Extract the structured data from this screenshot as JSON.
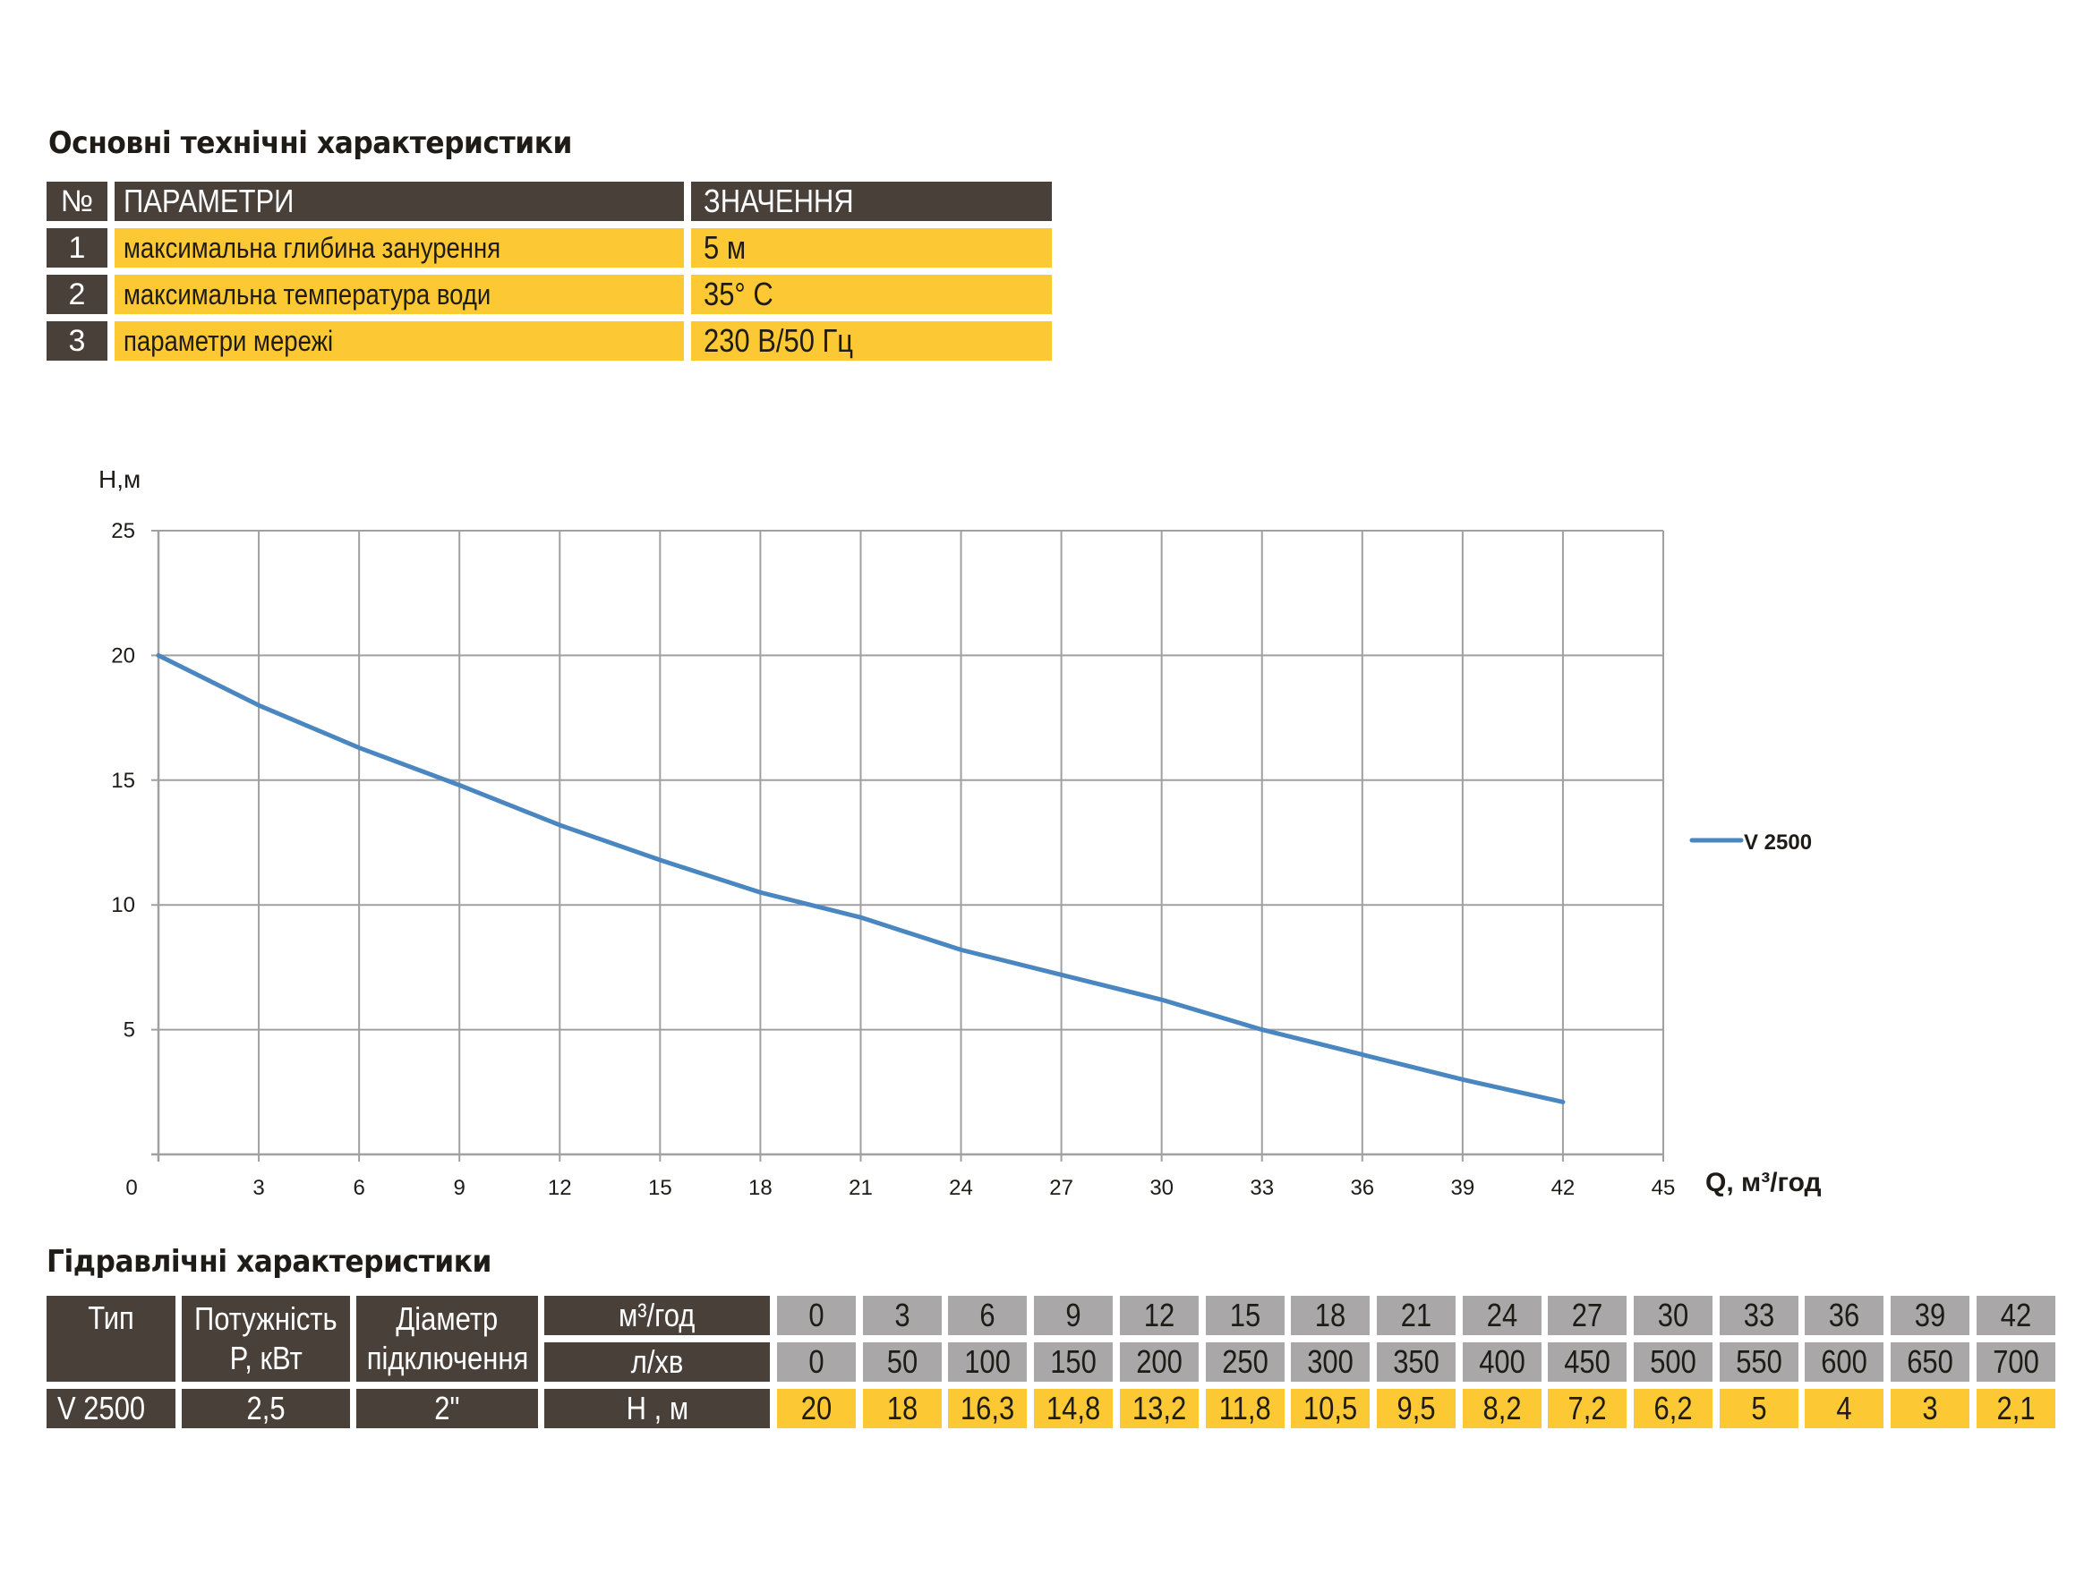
{
  "specs": {
    "title": "Основні технічні характеристики",
    "headers": {
      "num": "№",
      "param": "ПАРАМЕТРИ",
      "value": "ЗНАЧЕННЯ"
    },
    "rows": [
      {
        "num": "1",
        "param": "максимальна глибина занурення",
        "value": "5 м"
      },
      {
        "num": "2",
        "param": "максимальна температура води",
        "value": "35° C"
      },
      {
        "num": "3",
        "param": "параметри мережі",
        "value": "230 В/50 Гц"
      }
    ]
  },
  "chart_data": {
    "type": "line",
    "xlabel": "Q, м³/год",
    "ylabel": "H,м",
    "xlim": [
      0,
      45
    ],
    "ylim": [
      0,
      25
    ],
    "x_ticks": [
      0,
      3,
      6,
      9,
      12,
      15,
      18,
      21,
      24,
      27,
      30,
      33,
      36,
      39,
      42,
      45
    ],
    "y_ticks": [
      5,
      10,
      15,
      20,
      25
    ],
    "grid": true,
    "legend_position": "right",
    "colors": {
      "series": "#4a86c0",
      "grid": "#a0a0a0"
    },
    "x": [
      0,
      3,
      6,
      9,
      12,
      15,
      18,
      21,
      24,
      27,
      30,
      33,
      36,
      39,
      42
    ],
    "series": [
      {
        "name": "V 2500",
        "values": [
          20,
          18,
          16.3,
          14.8,
          13.2,
          11.8,
          10.5,
          9.5,
          8.2,
          7.2,
          6.2,
          5,
          4,
          3,
          2.1
        ]
      }
    ]
  },
  "hydraulic": {
    "title": "Гідравлічні характеристики",
    "headers": {
      "type": "Тип",
      "power_1": "Потужність",
      "power_2": "P, кВт",
      "diam_1": "Діаметр",
      "diam_2": "підключення"
    },
    "row_labels": {
      "m3h": "м³/год",
      "lmin": "л/хв",
      "h": "Н , м"
    },
    "m3h": [
      "0",
      "3",
      "6",
      "9",
      "12",
      "15",
      "18",
      "21",
      "24",
      "27",
      "30",
      "33",
      "36",
      "39",
      "42"
    ],
    "lmin": [
      "0",
      "50",
      "100",
      "150",
      "200",
      "250",
      "300",
      "350",
      "400",
      "450",
      "500",
      "550",
      "600",
      "650",
      "700"
    ],
    "model": {
      "type": "V 2500",
      "power": "2,5",
      "diameter": "2\""
    },
    "h": [
      "20",
      "18",
      "16,3",
      "14,8",
      "13,2",
      "11,8",
      "10,5",
      "9,5",
      "8,2",
      "7,2",
      "6,2",
      "5",
      "4",
      "3",
      "2,1"
    ]
  }
}
